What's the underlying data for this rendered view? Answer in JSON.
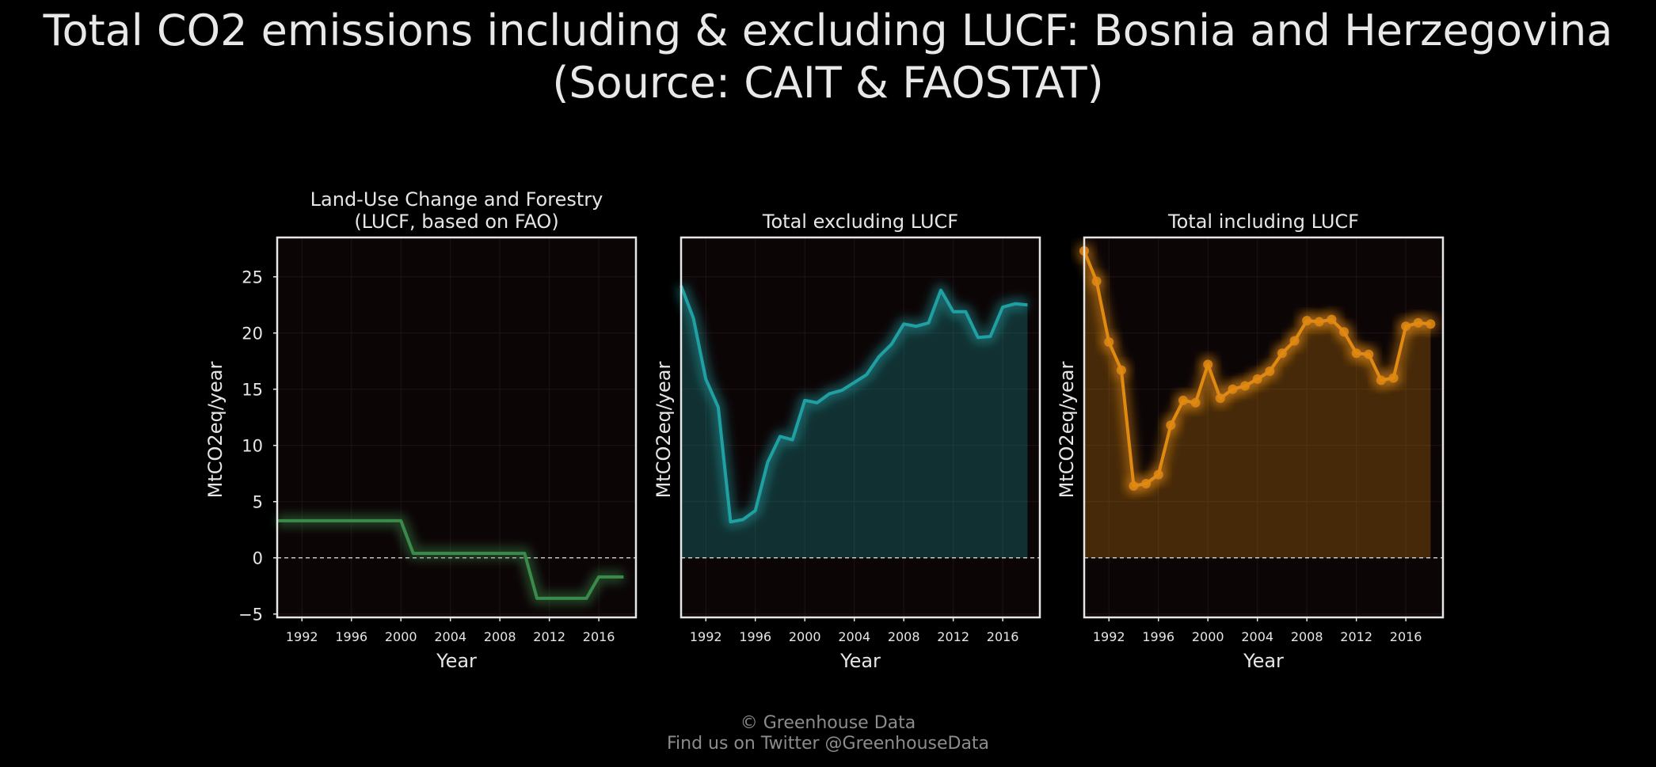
{
  "title": {
    "line1": "Total CO2 emissions including & excluding LUCF: Bosnia and Herzegovina",
    "line2": "(Source: CAIT & FAOSTAT)"
  },
  "footer": {
    "line1": "© Greenhouse Data",
    "line2": "Find us on Twitter @GreenhouseData"
  },
  "colors": {
    "background": "#000000",
    "plot_background": "#0c0506",
    "lucf": "#3a8a4a",
    "excluding": "#1fa0a3",
    "including": "#e08a10"
  },
  "chart_data": [
    {
      "type": "line",
      "title": "Land-Use Change and Forestry\n(LUCF, based on FAO)",
      "xlabel": "Year",
      "ylabel": "MtCO2eq/year",
      "xlim": [
        1990,
        2019
      ],
      "ylim": [
        -5.3,
        28.5
      ],
      "xticks": [
        1992,
        1996,
        2000,
        2004,
        2008,
        2012,
        2016
      ],
      "yticks": [
        -5,
        0,
        5,
        10,
        15,
        20,
        25
      ],
      "show_yticks": true,
      "markers": false,
      "zero_line": "dashed",
      "x": [
        1990,
        1991,
        1992,
        1993,
        1994,
        1995,
        1996,
        1997,
        1998,
        1999,
        2000,
        2001,
        2002,
        2003,
        2004,
        2005,
        2006,
        2007,
        2008,
        2009,
        2010,
        2011,
        2012,
        2013,
        2014,
        2015,
        2016,
        2017,
        2018
      ],
      "series": [
        {
          "values": [
            3.3,
            3.3,
            3.3,
            3.3,
            3.3,
            3.3,
            3.3,
            3.3,
            3.3,
            3.3,
            3.3,
            0.4,
            0.4,
            0.4,
            0.4,
            0.4,
            0.4,
            0.4,
            0.4,
            0.4,
            0.4,
            -3.6,
            -3.6,
            -3.6,
            -3.6,
            -3.6,
            -1.7,
            -1.7,
            -1.7
          ]
        }
      ]
    },
    {
      "type": "area",
      "title": "Total excluding LUCF",
      "xlabel": "Year",
      "ylabel": "MtCO2eq/year",
      "xlim": [
        1990,
        2019
      ],
      "ylim": [
        -5.3,
        28.5
      ],
      "xticks": [
        1992,
        1996,
        2000,
        2004,
        2008,
        2012,
        2016
      ],
      "yticks": [],
      "show_yticks": false,
      "markers": false,
      "zero_line": "dashed",
      "x": [
        1990,
        1991,
        1992,
        1993,
        1994,
        1995,
        1996,
        1997,
        1998,
        1999,
        2000,
        2001,
        2002,
        2003,
        2004,
        2005,
        2006,
        2007,
        2008,
        2009,
        2010,
        2011,
        2012,
        2013,
        2014,
        2015,
        2016,
        2017,
        2018
      ],
      "series": [
        {
          "values": [
            24.2,
            21.3,
            15.9,
            13.4,
            3.2,
            3.4,
            4.2,
            8.5,
            10.8,
            10.5,
            14.0,
            13.8,
            14.6,
            14.9,
            15.6,
            16.3,
            17.9,
            19.0,
            20.8,
            20.6,
            20.9,
            23.8,
            21.9,
            21.9,
            19.6,
            19.7,
            22.3,
            22.6,
            22.5
          ]
        }
      ]
    },
    {
      "type": "area",
      "title": "Total including LUCF",
      "xlabel": "Year",
      "ylabel": "MtCO2eq/year",
      "xlim": [
        1990,
        2019
      ],
      "ylim": [
        -5.3,
        28.5
      ],
      "xticks": [
        1992,
        1996,
        2000,
        2004,
        2008,
        2012,
        2016
      ],
      "yticks": [],
      "show_yticks": false,
      "markers": true,
      "zero_line": "dashed",
      "x": [
        1990,
        1991,
        1992,
        1993,
        1994,
        1995,
        1996,
        1997,
        1998,
        1999,
        2000,
        2001,
        2002,
        2003,
        2004,
        2005,
        2006,
        2007,
        2008,
        2009,
        2010,
        2011,
        2012,
        2013,
        2014,
        2015,
        2016,
        2017,
        2018
      ],
      "series": [
        {
          "values": [
            27.3,
            24.6,
            19.2,
            16.7,
            6.4,
            6.6,
            7.4,
            11.8,
            14.0,
            13.8,
            17.2,
            14.2,
            15.0,
            15.3,
            15.9,
            16.6,
            18.2,
            19.3,
            21.1,
            21.0,
            21.2,
            20.1,
            18.2,
            18.1,
            15.8,
            16.0,
            20.6,
            20.9,
            20.8
          ]
        }
      ]
    }
  ]
}
